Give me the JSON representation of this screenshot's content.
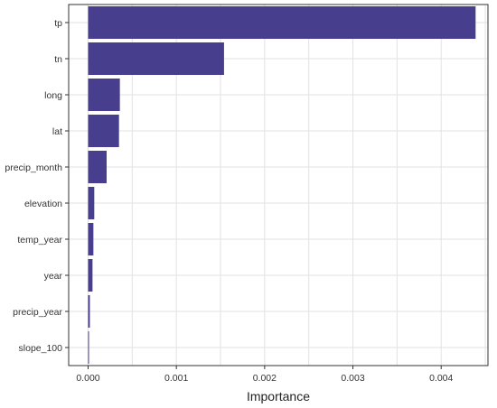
{
  "chart_data": {
    "type": "bar",
    "orientation": "horizontal",
    "categories": [
      "tp",
      "tn",
      "long",
      "lat",
      "precip_month",
      "elevation",
      "temp_year",
      "year",
      "precip_year",
      "slope_100"
    ],
    "values": [
      0.00439,
      0.00154,
      0.00036,
      0.00035,
      0.00021,
      7e-05,
      6e-05,
      5e-05,
      2e-05,
      1e-05
    ],
    "title": "",
    "xlabel": "Importance",
    "ylabel": "",
    "xlim": [
      -0.00022,
      0.00453
    ],
    "x_ticks": [
      0.0,
      0.001,
      0.002,
      0.003,
      0.004
    ],
    "x_tick_labels": [
      "0.000",
      "0.001",
      "0.002",
      "0.003",
      "0.004"
    ],
    "grid": true,
    "legend": "none",
    "colors": {
      "bar": "#473F8D",
      "grid": "#e2e2e2",
      "border": "#333333",
      "background": "#ffffff"
    }
  }
}
